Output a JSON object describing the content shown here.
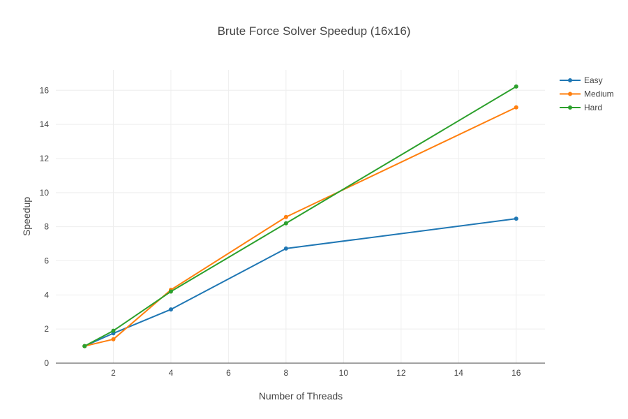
{
  "chart_data": {
    "type": "line",
    "title": "Brute Force Solver Speedup (16x16)",
    "xlabel": "Number of Threads",
    "ylabel": "Speedup",
    "xlim": [
      0,
      17
    ],
    "ylim": [
      0,
      17.2
    ],
    "xticks": [
      2,
      4,
      6,
      8,
      10,
      12,
      14,
      16
    ],
    "yticks": [
      0,
      2,
      4,
      6,
      8,
      10,
      12,
      14,
      16
    ],
    "grid": true,
    "legend_position": "top-right",
    "x": [
      1,
      2,
      4,
      8,
      16
    ],
    "series": [
      {
        "name": "Easy",
        "color": "#1f77b4",
        "values": [
          1,
          1.75,
          3.15,
          6.72,
          8.47
        ]
      },
      {
        "name": "Medium",
        "color": "#ff7f0e",
        "values": [
          1,
          1.4,
          4.3,
          8.57,
          15.0
        ]
      },
      {
        "name": "Hard",
        "color": "#2ca02c",
        "values": [
          1,
          1.9,
          4.2,
          8.2,
          16.22
        ]
      }
    ]
  }
}
